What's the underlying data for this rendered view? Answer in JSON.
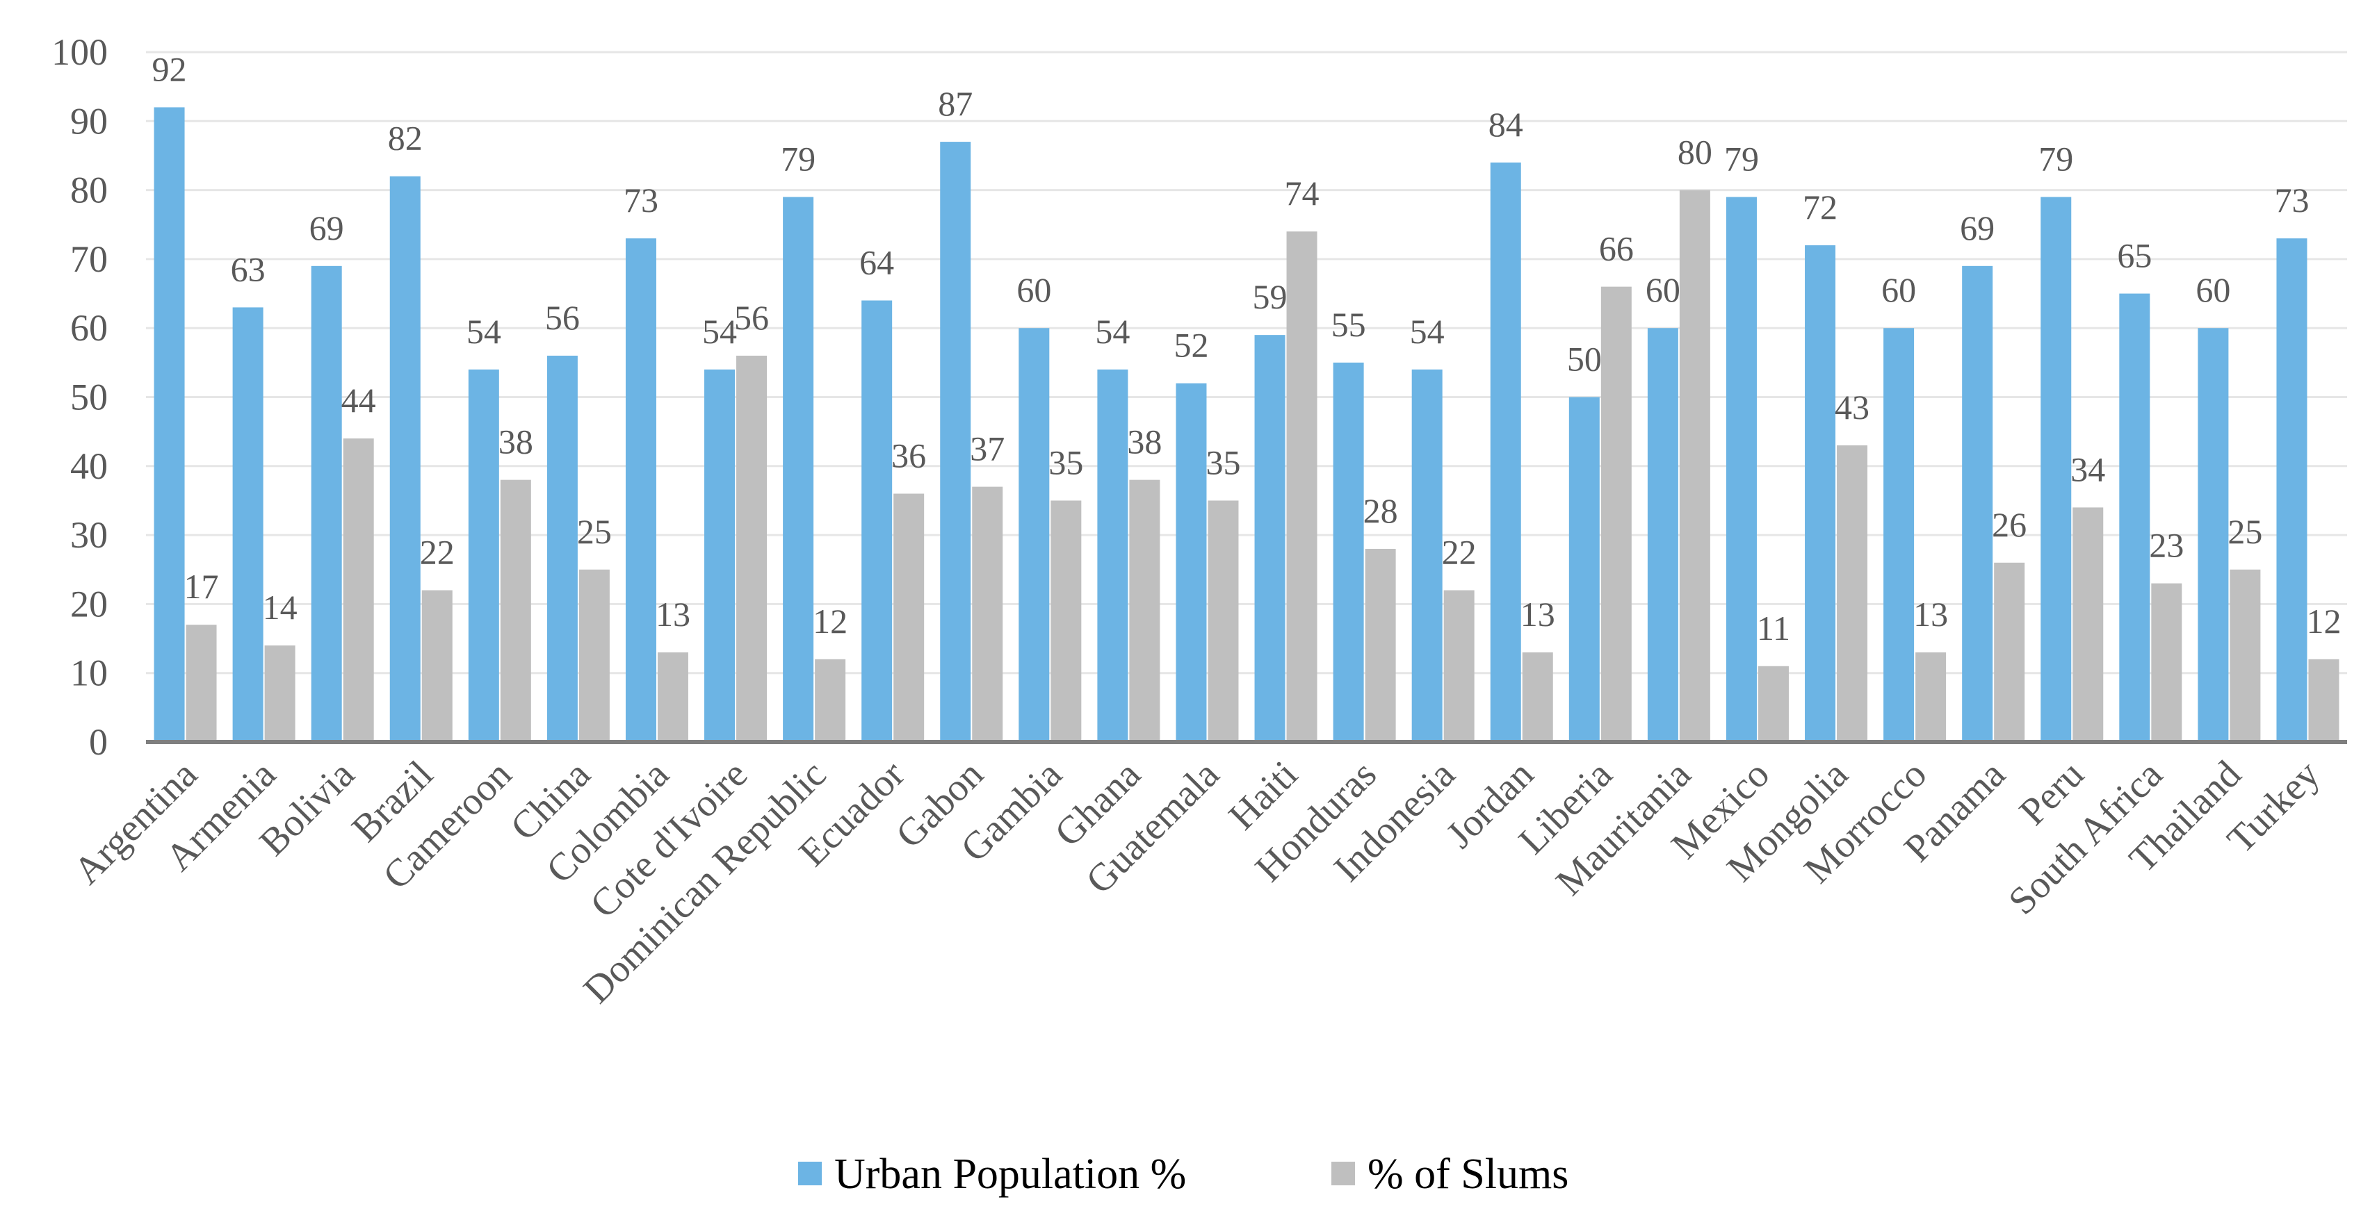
{
  "chart_data": {
    "type": "bar",
    "title": "",
    "xlabel": "",
    "ylabel": "",
    "ylim": [
      0,
      100
    ],
    "yticks": [
      0,
      10,
      20,
      30,
      40,
      50,
      60,
      70,
      80,
      90,
      100
    ],
    "grid": true,
    "legend_position": "bottom",
    "categories": [
      "Argentina",
      "Armenia",
      "Bolivia",
      "Brazil",
      "Cameroon",
      "China",
      "Colombia",
      "Cote d'Ivoire",
      "Dominican Republic",
      "Ecuador",
      "Gabon",
      "Gambia",
      "Ghana",
      "Guatemala",
      "Haiti",
      "Honduras",
      "Indonesia",
      "Jordan",
      "Liberia",
      "Mauritania",
      "Mexico",
      "Mongolia",
      "Morrocco",
      "Panama",
      "Peru",
      "South Africa",
      "Thailand",
      "Turkey"
    ],
    "series": [
      {
        "name": "Urban Population %",
        "color": "#6CB4E4",
        "values": [
          92,
          63,
          69,
          82,
          54,
          56,
          73,
          54,
          79,
          64,
          87,
          60,
          54,
          52,
          59,
          55,
          54,
          84,
          50,
          60,
          79,
          72,
          60,
          69,
          79,
          65,
          60,
          73
        ]
      },
      {
        "name": "% of Slums",
        "color": "#BFBFBF",
        "values": [
          17,
          14,
          44,
          22,
          38,
          25,
          13,
          56,
          12,
          36,
          37,
          35,
          38,
          35,
          74,
          28,
          22,
          13,
          66,
          80,
          11,
          43,
          13,
          26,
          34,
          23,
          25,
          12
        ]
      }
    ]
  }
}
